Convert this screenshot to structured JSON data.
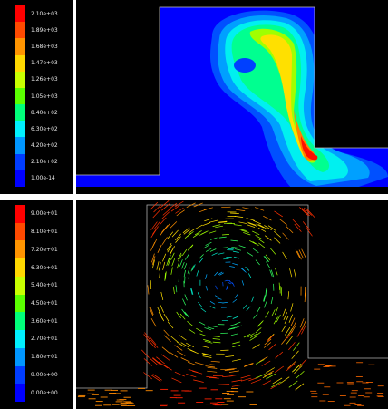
{
  "legends": [
    {
      "labels": [
        "2.10e+03",
        "1.89e+03",
        "1.68e+03",
        "1.47e+03",
        "1.26e+03",
        "1.05e+03",
        "8.40e+02",
        "6.30e+02",
        "4.20e+02",
        "2.10e+02",
        "1.00e-14"
      ],
      "colors": [
        "#ff0000",
        "#ff4a00",
        "#ff9400",
        "#ffd800",
        "#c8ff00",
        "#5aff00",
        "#00ff7a",
        "#00f0ff",
        "#0096ff",
        "#003cff",
        "#0000ff"
      ]
    },
    {
      "labels": [
        "9.00e+01",
        "8.10e+01",
        "7.20e+01",
        "6.30e+01",
        "5.40e+01",
        "4.50e+01",
        "3.60e+01",
        "2.70e+01",
        "1.80e+01",
        "9.00e+00",
        "0.00e+00"
      ],
      "colors": [
        "#ff0000",
        "#ff4a00",
        "#ff9400",
        "#ffd800",
        "#c8ff00",
        "#5aff00",
        "#00ff7a",
        "#00f0ff",
        "#0096ff",
        "#003cff",
        "#0000ff"
      ]
    }
  ]
}
